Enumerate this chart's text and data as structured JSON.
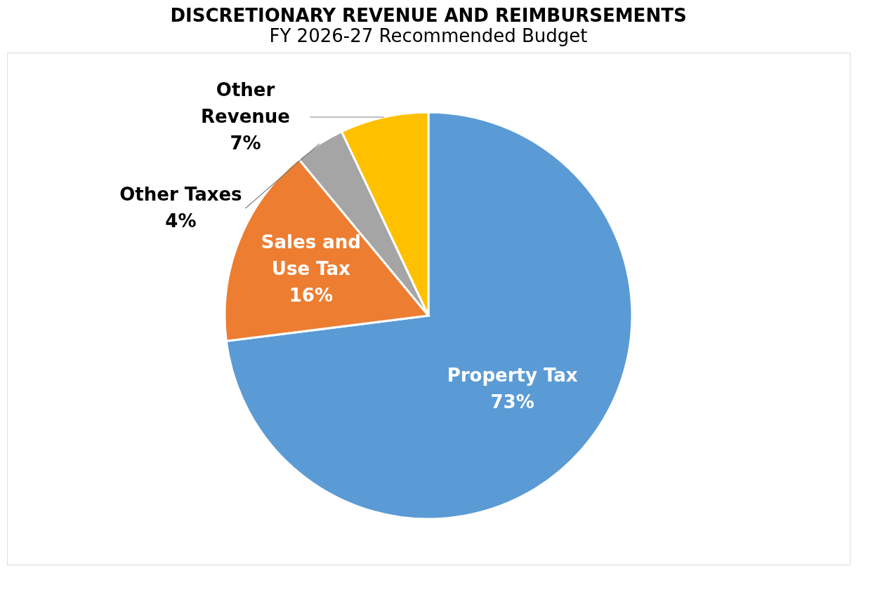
{
  "chart_data": {
    "type": "pie",
    "title": "DISCRETIONARY REVENUE AND REIMBURSEMENTS",
    "subtitle": "FY 2026-27 Recommended Budget",
    "categories": [
      "Property Tax",
      "Sales and\nUse Tax",
      "Other Taxes",
      "Other\nRevenue"
    ],
    "values": [
      73,
      16,
      4,
      7
    ],
    "colors": [
      "#5b9bd5",
      "#ed7d31",
      "#a5a5a5",
      "#ffc000"
    ],
    "value_labels": [
      "73%",
      "16%",
      "4%",
      "7%"
    ]
  }
}
